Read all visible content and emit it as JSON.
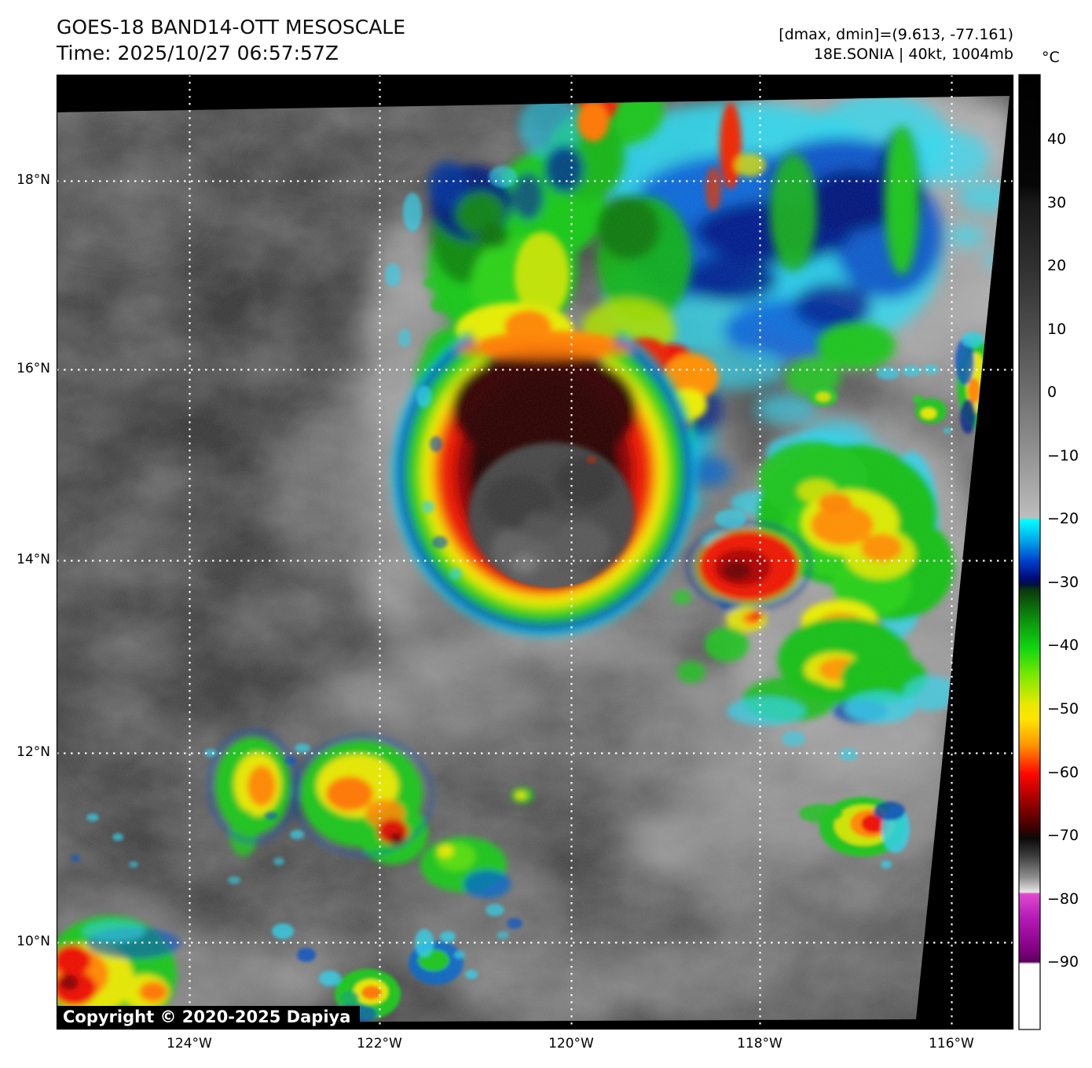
{
  "header": {
    "title": "GOES-18 BAND14-OTT MESOSCALE",
    "time": "Time: 2025/10/27 06:57:57Z",
    "dmax_dmin": "[dmax, dmin]=(9.613, -77.161)",
    "storm": "18E.SONIA | 40kt, 1004mb"
  },
  "axes": {
    "lat": [
      "18°N",
      "16°N",
      "14°N",
      "12°N",
      "10°N"
    ],
    "lon": [
      "124°W",
      "122°W",
      "120°W",
      "118°W",
      "116°W"
    ]
  },
  "colorbar": {
    "unit": "°C",
    "ticks": [
      "40",
      "30",
      "20",
      "10",
      "0",
      "−10",
      "−20",
      "−30",
      "−40",
      "−50",
      "−60",
      "−70",
      "−80",
      "−90"
    ],
    "gradient": [
      {
        "o": 0.0,
        "c": "#000000"
      },
      {
        "o": 0.115,
        "c": "#060606"
      },
      {
        "o": 0.135,
        "c": "#191919"
      },
      {
        "o": 0.201,
        "c": "#303030"
      },
      {
        "o": 0.267,
        "c": "#4c4c4c"
      },
      {
        "o": 0.334,
        "c": "#6f6f6f"
      },
      {
        "o": 0.4,
        "c": "#949494"
      },
      {
        "o": 0.464,
        "c": "#bdbdbd"
      },
      {
        "o": 0.4665,
        "c": "#00ffff"
      },
      {
        "o": 0.489,
        "c": "#00a2e8"
      },
      {
        "o": 0.509,
        "c": "#0040cc"
      },
      {
        "o": 0.526,
        "c": "#000d80"
      },
      {
        "o": 0.534,
        "c": "#001040"
      },
      {
        "o": 0.54,
        "c": "#0a3a0a"
      },
      {
        "o": 0.572,
        "c": "#0d930d"
      },
      {
        "o": 0.6,
        "c": "#10d510"
      },
      {
        "o": 0.629,
        "c": "#7ae800"
      },
      {
        "o": 0.659,
        "c": "#e8e800"
      },
      {
        "o": 0.675,
        "c": "#ffe400"
      },
      {
        "o": 0.702,
        "c": "#ff9500"
      },
      {
        "o": 0.732,
        "c": "#ff0800"
      },
      {
        "o": 0.758,
        "c": "#a80000"
      },
      {
        "o": 0.788,
        "c": "#400000"
      },
      {
        "o": 0.8,
        "c": "#0a0a0a"
      },
      {
        "o": 0.818,
        "c": "#3c3c3c"
      },
      {
        "o": 0.841,
        "c": "#909090"
      },
      {
        "o": 0.856,
        "c": "#e6e6e6"
      },
      {
        "o": 0.858,
        "c": "#e04ad0"
      },
      {
        "o": 0.884,
        "c": "#b518b5"
      },
      {
        "o": 0.917,
        "c": "#800080"
      },
      {
        "o": 0.929,
        "c": "#5c005c"
      },
      {
        "o": 0.9315,
        "c": "#ffffff"
      },
      {
        "o": 1.0,
        "c": "#ffffff"
      }
    ]
  },
  "footer": {
    "copyright": "Copyright © 2020-2025 Dapiya"
  }
}
